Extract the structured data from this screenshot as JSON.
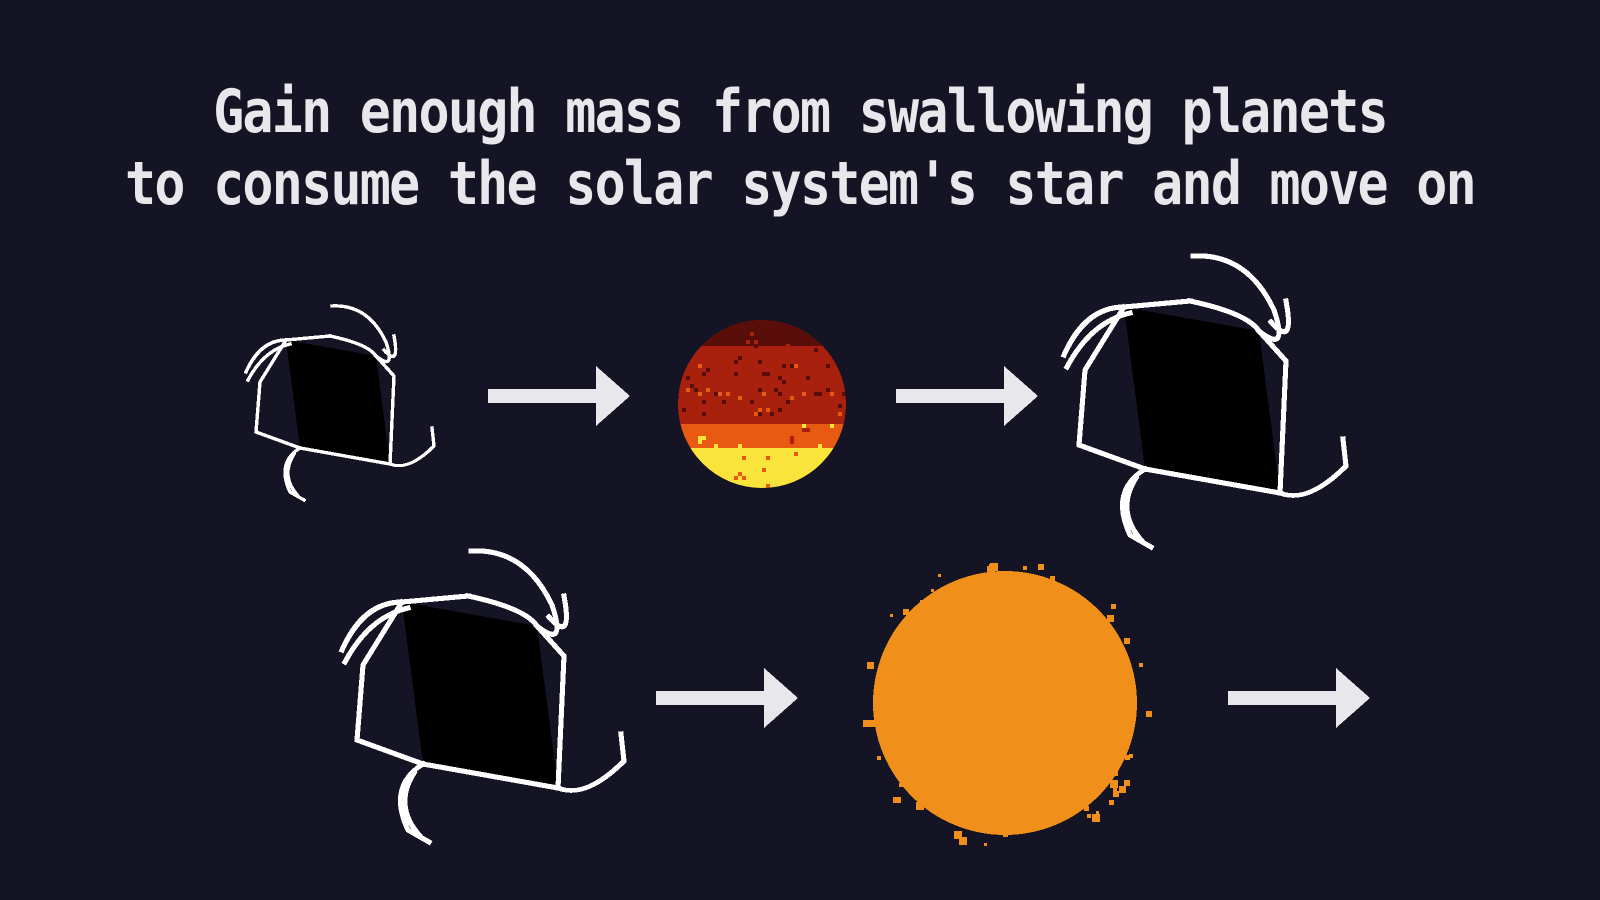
{
  "instruction": {
    "line1": "Gain enough mass from swallowing planets",
    "line2": "to consume the solar system's star and move on"
  },
  "colors": {
    "background": "#141424",
    "text": "#e8e8ec",
    "arrow": "#e8e8ec",
    "black_hole_fill": "#000000",
    "black_hole_outline": "#ffffff",
    "planet_dark": "#5a0e0a",
    "planet_mid": "#a8200e",
    "planet_hot": "#e85a12",
    "planet_lava": "#f8e43a",
    "star": "#f0901a"
  },
  "icons": {
    "black_hole": "black-hole-icon",
    "planet": "molten-planet-icon",
    "star": "star-icon",
    "arrow": "arrow-right-icon"
  }
}
